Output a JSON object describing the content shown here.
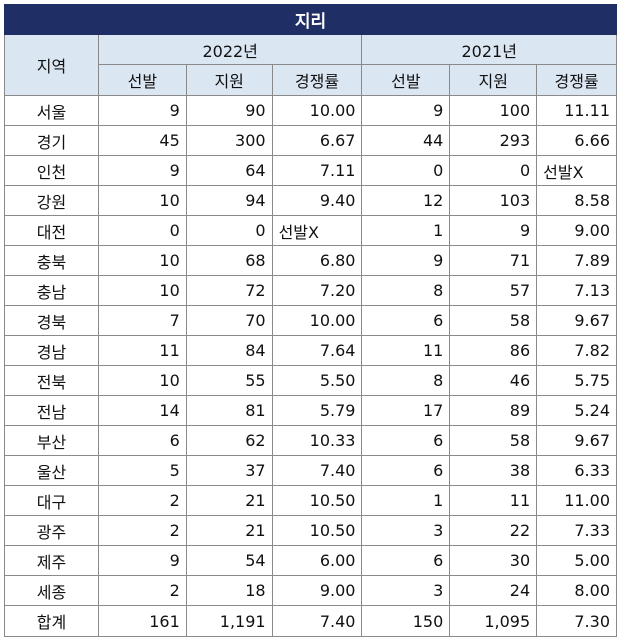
{
  "title": "지리",
  "header": {
    "region": "지역",
    "years": [
      "2022년",
      "2021년"
    ],
    "sub": [
      "선발",
      "지원",
      "경쟁률",
      "선발",
      "지원",
      "경쟁률"
    ]
  },
  "rows": [
    [
      "서울",
      "9",
      "90",
      "10.00",
      "9",
      "100",
      "11.11"
    ],
    [
      "경기",
      "45",
      "300",
      "6.67",
      "44",
      "293",
      "6.66"
    ],
    [
      "인천",
      "9",
      "64",
      "7.11",
      "0",
      "0",
      "선발X"
    ],
    [
      "강원",
      "10",
      "94",
      "9.40",
      "12",
      "103",
      "8.58"
    ],
    [
      "대전",
      "0",
      "0",
      "선발X",
      "1",
      "9",
      "9.00"
    ],
    [
      "충북",
      "10",
      "68",
      "6.80",
      "9",
      "71",
      "7.89"
    ],
    [
      "충남",
      "10",
      "72",
      "7.20",
      "8",
      "57",
      "7.13"
    ],
    [
      "경북",
      "7",
      "70",
      "10.00",
      "6",
      "58",
      "9.67"
    ],
    [
      "경남",
      "11",
      "84",
      "7.64",
      "11",
      "86",
      "7.82"
    ],
    [
      "전북",
      "10",
      "55",
      "5.50",
      "8",
      "46",
      "5.75"
    ],
    [
      "전남",
      "14",
      "81",
      "5.79",
      "17",
      "89",
      "5.24"
    ],
    [
      "부산",
      "6",
      "62",
      "10.33",
      "6",
      "58",
      "9.67"
    ],
    [
      "울산",
      "5",
      "37",
      "7.40",
      "6",
      "38",
      "6.33"
    ],
    [
      "대구",
      "2",
      "21",
      "10.50",
      "1",
      "11",
      "11.00"
    ],
    [
      "광주",
      "2",
      "21",
      "10.50",
      "3",
      "22",
      "7.33"
    ],
    [
      "제주",
      "9",
      "54",
      "6.00",
      "6",
      "30",
      "5.00"
    ],
    [
      "세종",
      "2",
      "18",
      "9.00",
      "3",
      "24",
      "8.00"
    ]
  ],
  "total": [
    "합계",
    "161",
    "1,191",
    "7.40",
    "150",
    "1,095",
    "7.30"
  ],
  "colors": {
    "title_bg": "#1f2f66",
    "header_bg": "#dbe6f3",
    "border": "#8a8a8a"
  }
}
